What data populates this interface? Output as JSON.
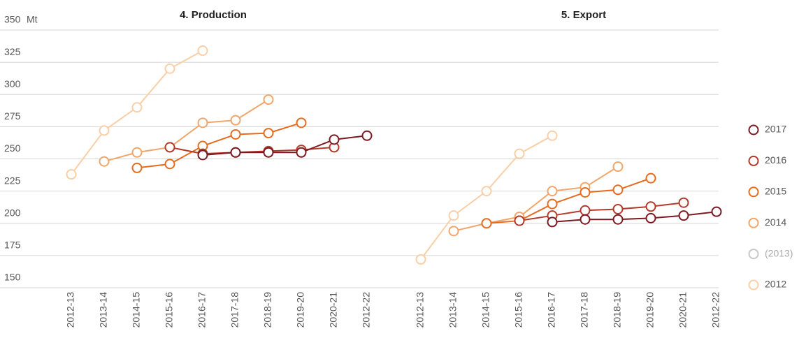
{
  "chart_data": {
    "type": "line",
    "y_unit": "Mt",
    "ylim": [
      150,
      350
    ],
    "yticks": [
      150,
      175,
      200,
      225,
      250,
      275,
      300,
      325,
      350
    ],
    "grid": true,
    "legend": "right",
    "categories": [
      "2012-13",
      "2013-14",
      "2014-15",
      "2015-16",
      "2016-17",
      "2017-18",
      "2018-19",
      "2019-20",
      "2020-21",
      "2012-22"
    ],
    "series": [
      {
        "name": "2017",
        "color": "#7b1a22"
      },
      {
        "name": "2016",
        "color": "#b33b2b"
      },
      {
        "name": "2015",
        "color": "#e56c1e"
      },
      {
        "name": "2014",
        "color": "#f0a66b"
      },
      {
        "name": "(2013)",
        "color": "#c8c8c8"
      },
      {
        "name": "2012",
        "color": "#f8cfa6"
      }
    ],
    "panels": [
      {
        "title": "4. Production",
        "series": [
          {
            "values": [
              null,
              null,
              null,
              null,
              253,
              255,
              255,
              255,
              265,
              268
            ]
          },
          {
            "values": [
              null,
              null,
              null,
              259,
              254,
              255,
              256,
              257,
              259,
              null
            ]
          },
          {
            "values": [
              null,
              null,
              243,
              246,
              260,
              269,
              270,
              278,
              null,
              null
            ]
          },
          {
            "values": [
              null,
              248,
              255,
              259,
              278,
              280,
              296,
              null,
              null,
              null
            ]
          },
          {
            "values": [
              null,
              null,
              null,
              null,
              null,
              null,
              null,
              null,
              null,
              null
            ]
          },
          {
            "values": [
              238,
              272,
              290,
              320,
              334,
              null,
              null,
              null,
              null,
              null
            ]
          }
        ]
      },
      {
        "title": "5. Export",
        "series": [
          {
            "values": [
              null,
              null,
              null,
              null,
              201,
              203,
              203,
              204,
              206,
              209
            ]
          },
          {
            "values": [
              null,
              null,
              null,
              202,
              206,
              210,
              211,
              213,
              216,
              null
            ]
          },
          {
            "values": [
              null,
              null,
              200,
              202,
              215,
              224,
              226,
              235,
              null,
              null
            ]
          },
          {
            "values": [
              null,
              194,
              200,
              205,
              225,
              228,
              244,
              null,
              null,
              null
            ]
          },
          {
            "values": [
              null,
              null,
              null,
              null,
              null,
              null,
              null,
              null,
              null,
              null
            ]
          },
          {
            "values": [
              172,
              206,
              225,
              254,
              268,
              null,
              null,
              null,
              null,
              null
            ]
          }
        ]
      }
    ]
  }
}
